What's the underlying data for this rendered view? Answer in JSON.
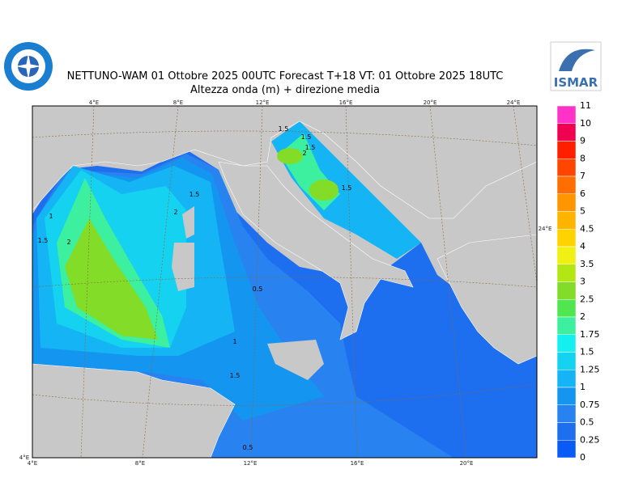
{
  "header": {
    "title": "NETTUNO-WAM  01  Ottobre  2025 00UTC Forecast T+18 VT: 01  Ottobre  2025 18UTC",
    "subtitle": "Altezza onda (m) + direzione media",
    "logo_right": "ISMAR"
  },
  "map": {
    "top_lon_labels": [
      "4°E",
      "8°E",
      "12°E",
      "16°E",
      "20°E",
      "24°E"
    ],
    "bottom_lon_labels": [
      "4°E",
      "8°E",
      "12°E",
      "16°E",
      "20°E"
    ],
    "corner_label": "4°E",
    "right_label": "24°E",
    "contour_labels": [
      "1",
      "1.5",
      "2",
      "1.5",
      "2",
      "1.5",
      "0.5",
      "1",
      "1.5",
      "0.5",
      "1.5",
      "2",
      "1.5",
      "1.5"
    ]
  },
  "legend": {
    "labels": [
      11,
      10,
      9,
      8,
      7,
      6,
      5,
      4.5,
      4,
      3.5,
      3,
      2.5,
      2,
      1.75,
      1.5,
      1.25,
      1,
      0.75,
      0.5,
      0.25,
      0
    ],
    "colors": [
      "#ff32c8",
      "#f00050",
      "#ff1e00",
      "#ff4600",
      "#ff6e00",
      "#ff9600",
      "#ffb400",
      "#ffd200",
      "#f0f014",
      "#b4e614",
      "#82dc28",
      "#50e650",
      "#3cf0a0",
      "#14f0f0",
      "#14d2f0",
      "#14b4f5",
      "#1496f0",
      "#2882f0",
      "#1e6ef0",
      "#0a5af5"
    ]
  }
}
